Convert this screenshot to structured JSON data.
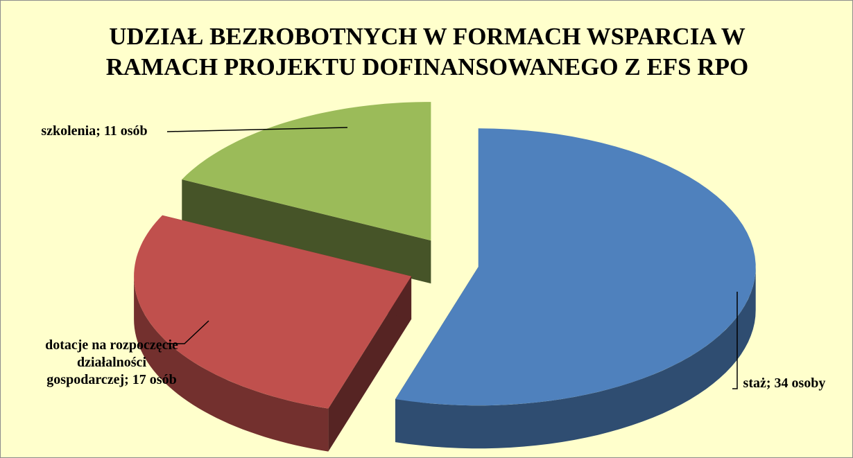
{
  "chart_data": {
    "type": "pie",
    "title": "UDZIAŁ BEZROBOTNYCH W FORMACH WSPARCIA W RAMACH PROJEKTU DOFINANSOWANEGO Z EFS RPO",
    "values": [
      34,
      17,
      11
    ],
    "value_labels": [
      "staż; 34 osoby",
      "dotacje na rozpoczęcie działalności gospodarczej; 17 osób",
      "szkolenia; 11 osób"
    ],
    "colors": [
      "#4f81bd",
      "#c0504d",
      "#9bbb59"
    ]
  }
}
